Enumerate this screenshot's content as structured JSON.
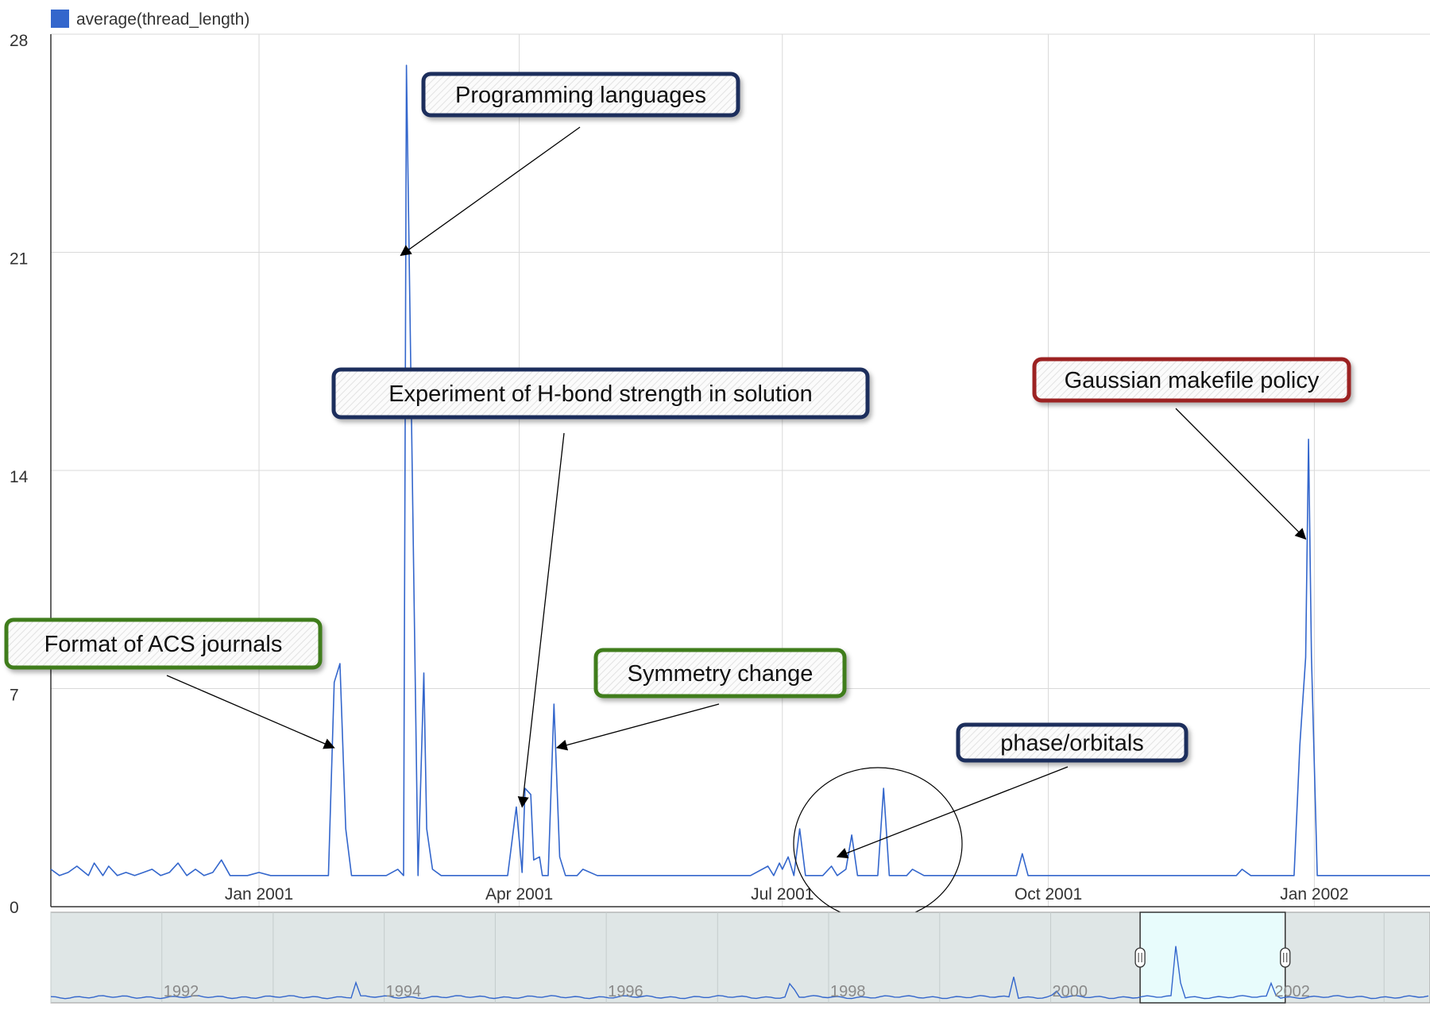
{
  "legend": {
    "label": "average(thread_length)",
    "color": "#3366cc"
  },
  "chart_data": {
    "type": "line",
    "series": [
      {
        "name": "average(thread_length)",
        "color": "#3366cc",
        "x": [
          "2000-10-21",
          "2000-10-24",
          "2000-10-27",
          "2000-10-30",
          "2000-11-03",
          "2000-11-05",
          "2000-11-08",
          "2000-11-10",
          "2000-11-13",
          "2000-11-16",
          "2000-11-19",
          "2000-11-22",
          "2000-11-25",
          "2000-11-28",
          "2000-12-01",
          "2000-12-04",
          "2000-12-07",
          "2000-12-10",
          "2000-12-13",
          "2000-12-16",
          "2000-12-19",
          "2000-12-22",
          "2000-12-25",
          "2000-12-28",
          "2001-01-01",
          "2001-01-05",
          "2001-01-10",
          "2001-01-15",
          "2001-01-20",
          "2001-01-25",
          "2001-01-27",
          "2001-01-29",
          "2001-01-31",
          "2001-02-02",
          "2001-02-08",
          "2001-02-14",
          "2001-02-18",
          "2001-02-20",
          "2001-02-21",
          "2001-02-23",
          "2001-02-25",
          "2001-02-27",
          "2001-02-28",
          "2001-03-02",
          "2001-03-05",
          "2001-03-10",
          "2001-03-20",
          "2001-03-28",
          "2001-03-31",
          "2001-04-02",
          "2001-04-03",
          "2001-04-05",
          "2001-04-06",
          "2001-04-08",
          "2001-04-09",
          "2001-04-11",
          "2001-04-13",
          "2001-04-15",
          "2001-04-17",
          "2001-04-19",
          "2001-04-21",
          "2001-04-23",
          "2001-04-28",
          "2001-04-30",
          "2001-05-02",
          "2001-05-15",
          "2001-06-01",
          "2001-06-20",
          "2001-06-26",
          "2001-06-28",
          "2001-06-30",
          "2001-07-01",
          "2001-07-03",
          "2001-07-05",
          "2001-07-07",
          "2001-07-09",
          "2001-07-15",
          "2001-07-18",
          "2001-07-20",
          "2001-07-23",
          "2001-07-25",
          "2001-07-27",
          "2001-07-29",
          "2001-08-03",
          "2001-08-05",
          "2001-08-07",
          "2001-08-09",
          "2001-08-13",
          "2001-08-15",
          "2001-08-19",
          "2001-09-01",
          "2001-09-20",
          "2001-09-22",
          "2001-09-24",
          "2001-10-15",
          "2001-11-01",
          "2001-11-20",
          "2001-12-05",
          "2001-12-07",
          "2001-12-10",
          "2001-12-20",
          "2001-12-25",
          "2001-12-27",
          "2001-12-29",
          "2001-12-30",
          "2001-12-31",
          "2002-01-02",
          "2002-01-04",
          "2002-01-07",
          "2002-01-20",
          "2002-02-10"
        ],
        "y": [
          1.2,
          1.0,
          1.1,
          1.3,
          1.0,
          1.4,
          1.0,
          1.3,
          1.0,
          1.1,
          1.0,
          1.1,
          1.2,
          1.0,
          1.1,
          1.4,
          1.0,
          1.2,
          1.0,
          1.1,
          1.5,
          1.0,
          1.0,
          1.0,
          1.1,
          1.0,
          1.0,
          1.0,
          1.0,
          1.0,
          7.2,
          7.8,
          2.5,
          1.0,
          1.0,
          1.0,
          1.2,
          1.0,
          27.0,
          14.0,
          1.0,
          7.5,
          2.5,
          1.2,
          1.0,
          1.0,
          1.0,
          1.0,
          3.2,
          1.1,
          3.8,
          3.6,
          1.5,
          1.6,
          1.0,
          1.0,
          6.5,
          1.6,
          1.0,
          1.0,
          1.0,
          1.2,
          1.0,
          1.0,
          1.0,
          1.0,
          1.0,
          1.0,
          1.3,
          1.0,
          1.4,
          1.2,
          1.6,
          1.0,
          2.5,
          1.0,
          1.0,
          1.3,
          1.0,
          1.2,
          2.3,
          1.0,
          1.0,
          1.0,
          3.8,
          1.0,
          1.0,
          1.0,
          1.2,
          1.0,
          1.0,
          1.0,
          1.7,
          1.0,
          1.0,
          1.0,
          1.0,
          1.0,
          1.2,
          1.0,
          1.0,
          1.0,
          5.2,
          8.0,
          15.0,
          8.0,
          1.0,
          1.0,
          1.0,
          1.0,
          1.0
        ]
      }
    ],
    "xlim": [
      "2000-10-21",
      "2002-02-10"
    ],
    "x_ticks": [
      {
        "date": "2001-01-01",
        "label": "Jan 2001"
      },
      {
        "date": "2001-04-01",
        "label": "Apr 2001"
      },
      {
        "date": "2001-07-01",
        "label": "Jul 2001"
      },
      {
        "date": "2001-10-01",
        "label": "Oct 2001"
      },
      {
        "date": "2002-01-01",
        "label": "Jan 2002"
      }
    ],
    "ylim": [
      0,
      28
    ],
    "y_ticks": [
      0,
      7,
      14,
      21,
      28
    ],
    "grid": true,
    "legend_position": "top-left",
    "annotations": [
      {
        "text": "Programming languages",
        "target_date": "2001-02-19",
        "target_value": 20.9,
        "border_color": "#1f2d5c"
      },
      {
        "text": "Experiment of H-bond strength in solution",
        "target_date": "2001-04-02",
        "target_value": 3.2,
        "border_color": "#1f2d5c"
      },
      {
        "text": "Format of ACS journals",
        "target_date": "2001-01-27",
        "target_value": 5.1,
        "border_color": "#3f7d1f"
      },
      {
        "text": "Symmetry change",
        "target_date": "2001-04-14",
        "target_value": 5.1,
        "border_color": "#3f7d1f"
      },
      {
        "text": "phase/orbitals",
        "target_date": "2001-07-20",
        "target_value": 1.6,
        "border_color": "#1f2d5c"
      },
      {
        "text": "Gaussian makefile policy",
        "target_date": "2001-12-29",
        "target_value": 11.8,
        "border_color": "#9c2020"
      }
    ],
    "overview": {
      "xlim": [
        "1991-01-01",
        "2003-06-01"
      ],
      "tick_labels": [
        "1992",
        "1994",
        "1996",
        "1998",
        "2000",
        "2002"
      ],
      "tick_years": [
        1992,
        1994,
        1996,
        1998,
        2000,
        2002
      ],
      "selection": [
        "2000-10-21",
        "2002-02-10"
      ],
      "peaks": [
        {
          "date": "1993-10-01",
          "value": 7
        },
        {
          "date": "1997-09-01",
          "value": 10
        },
        {
          "date": "1999-09-01",
          "value": 9
        },
        {
          "date": "2000-01-15",
          "value": 5
        },
        {
          "date": "2001-02-19",
          "value": 27
        },
        {
          "date": "2001-12-29",
          "value": 8
        }
      ]
    }
  }
}
